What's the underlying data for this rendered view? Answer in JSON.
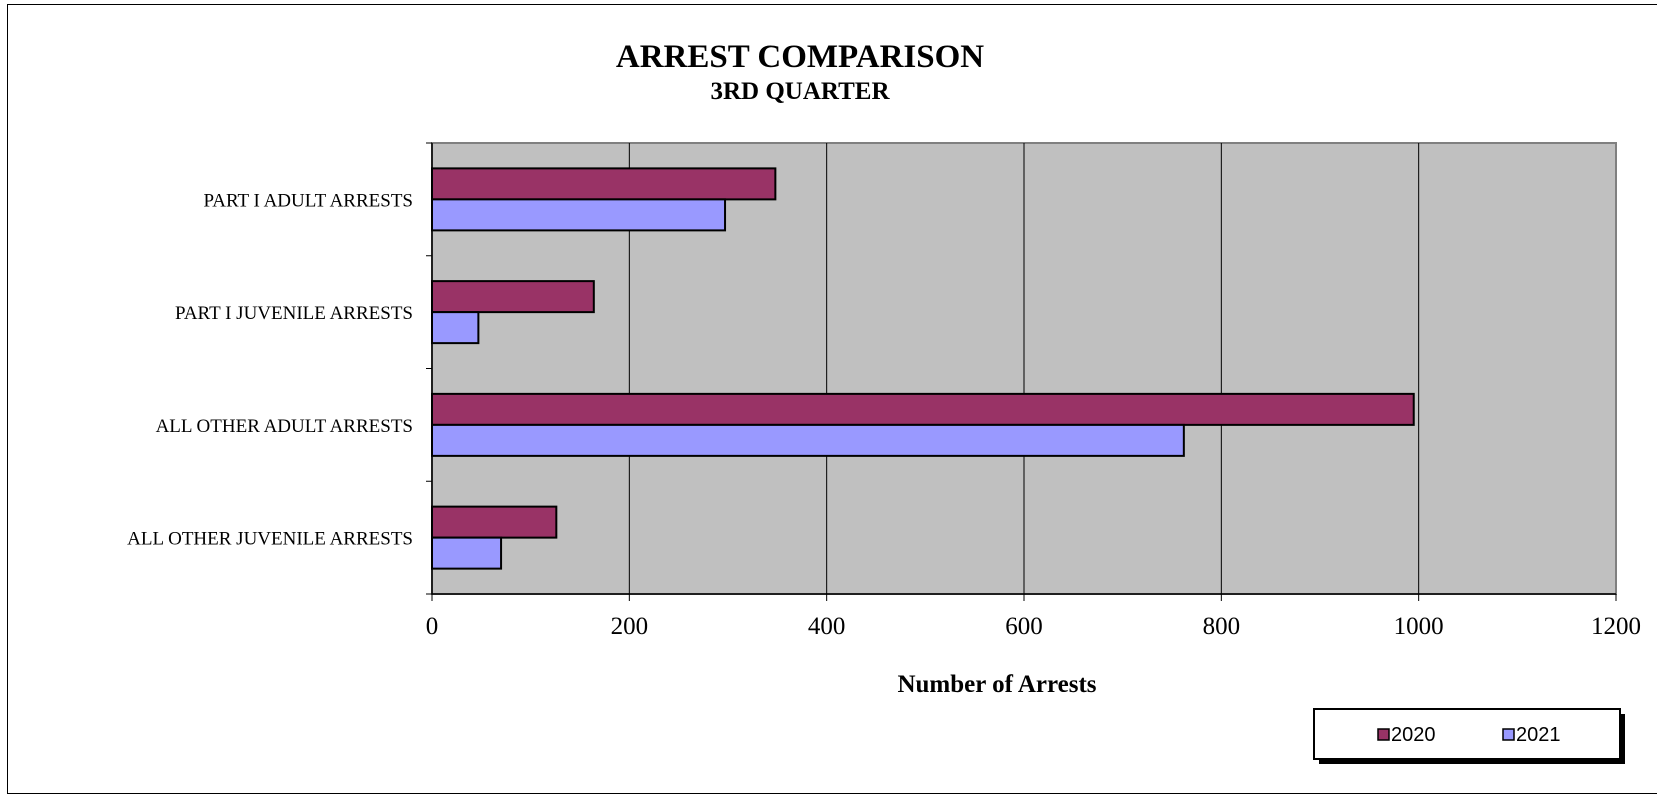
{
  "chart_data": {
    "type": "bar",
    "orientation": "horizontal",
    "title": "ARREST COMPARISON",
    "subtitle": "3RD QUARTER",
    "xlabel": "Number of Arrests",
    "ylabel": "",
    "categories": [
      "PART I ADULT ARRESTS",
      "PART I JUVENILE ARRESTS",
      "ALL OTHER ADULT ARRESTS",
      "ALL OTHER JUVENILE ARRESTS"
    ],
    "series": [
      {
        "name": "2020",
        "values": [
          348,
          164,
          995,
          126
        ],
        "color": "#993366"
      },
      {
        "name": "2021",
        "values": [
          297,
          47,
          762,
          70
        ],
        "color": "#9999ff"
      }
    ],
    "xlim": [
      0,
      1200
    ],
    "xticks": [
      "0",
      "200",
      "400",
      "600",
      "800",
      "1000",
      "1200"
    ],
    "grid": true,
    "plot_background": "#c0c0c0",
    "legend_position": "bottom-right"
  }
}
